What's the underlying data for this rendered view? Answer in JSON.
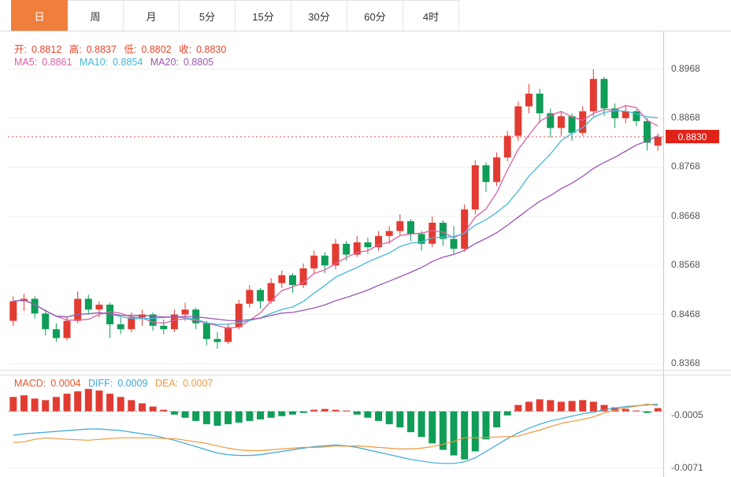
{
  "tabs": [
    {
      "label": "日",
      "active": true
    },
    {
      "label": "周",
      "active": false
    },
    {
      "label": "月",
      "active": false
    },
    {
      "label": "5分",
      "active": false
    },
    {
      "label": "15分",
      "active": false
    },
    {
      "label": "30分",
      "active": false
    },
    {
      "label": "60分",
      "active": false
    },
    {
      "label": "4时",
      "active": false
    }
  ],
  "legend": {
    "open_label": "开:",
    "open": "0.8812",
    "high_label": "高:",
    "high": "0.8837",
    "low_label": "低:",
    "low": "0.8802",
    "close_label": "收:",
    "close": "0.8830",
    "ma5_label": "MA5:",
    "ma5": "0.8861",
    "ma10_label": "MA10:",
    "ma10": "0.8854",
    "ma20_label": "MA20:",
    "ma20": "0.8805"
  },
  "macd_legend": {
    "macd_label": "MACD:",
    "macd": "0.0004",
    "diff_label": "DIFF:",
    "diff": "0.0009",
    "dea_label": "DEA:",
    "dea": "0.0007"
  },
  "colors": {
    "up": "#e23b32",
    "down": "#0f9d58",
    "ma5": "#e05fa0",
    "ma10": "#45b8d8",
    "ma20": "#9a57b0",
    "diff_line": "#3aa8d8",
    "dea_line": "#f0973c",
    "last_price_line": "#e05050",
    "zero_line": "#7ecfcf",
    "grid": "#efefef",
    "tab_active_bg": "#f07f3d",
    "price_tag_bg": "#e02318"
  },
  "chart_data": {
    "type": "candlestick",
    "title": "Daily candlestick chart with MA overlays and MACD panel",
    "main": {
      "ylim": [
        0.8355,
        0.9035
      ],
      "axis_ticks": [
        0.8968,
        0.8868,
        0.8768,
        0.8668,
        0.8568,
        0.8468,
        0.8368
      ],
      "last_price": 0.883,
      "ohlc_last": {
        "open": 0.8812,
        "high": 0.8837,
        "low": 0.8802,
        "close": 0.883
      },
      "overlays": [
        {
          "name": "MA5",
          "period": 5,
          "value": 0.8861
        },
        {
          "name": "MA10",
          "period": 10,
          "value": 0.8854
        },
        {
          "name": "MA20",
          "period": 20,
          "value": 0.8805
        }
      ],
      "candles": [
        [
          0.8455,
          0.8505,
          0.8445,
          0.8495
        ],
        [
          0.8495,
          0.851,
          0.8475,
          0.85
        ],
        [
          0.85,
          0.8505,
          0.846,
          0.847
        ],
        [
          0.847,
          0.8478,
          0.8425,
          0.8438
        ],
        [
          0.8438,
          0.845,
          0.8412,
          0.842
        ],
        [
          0.842,
          0.8462,
          0.8415,
          0.8455
        ],
        [
          0.8455,
          0.8515,
          0.845,
          0.85
        ],
        [
          0.85,
          0.8508,
          0.8468,
          0.8478
        ],
        [
          0.8478,
          0.8495,
          0.8462,
          0.8488
        ],
        [
          0.8488,
          0.8492,
          0.842,
          0.8448
        ],
        [
          0.8448,
          0.8462,
          0.8428,
          0.8438
        ],
        [
          0.8438,
          0.8472,
          0.8432,
          0.8462
        ],
        [
          0.8462,
          0.8478,
          0.8445,
          0.8468
        ],
        [
          0.8468,
          0.8472,
          0.8435,
          0.8445
        ],
        [
          0.8445,
          0.8458,
          0.8428,
          0.8438
        ],
        [
          0.8438,
          0.8478,
          0.8432,
          0.8468
        ],
        [
          0.8468,
          0.8492,
          0.8455,
          0.8478
        ],
        [
          0.8478,
          0.8482,
          0.8438,
          0.845
        ],
        [
          0.845,
          0.8455,
          0.8405,
          0.8418
        ],
        [
          0.8418,
          0.8432,
          0.8398,
          0.8412
        ],
        [
          0.8412,
          0.8448,
          0.8408,
          0.8442
        ],
        [
          0.8442,
          0.8498,
          0.8438,
          0.849
        ],
        [
          0.849,
          0.8528,
          0.8482,
          0.8518
        ],
        [
          0.8518,
          0.8522,
          0.848,
          0.8495
        ],
        [
          0.8495,
          0.8542,
          0.849,
          0.8532
        ],
        [
          0.8532,
          0.8558,
          0.8522,
          0.8548
        ],
        [
          0.8548,
          0.8552,
          0.8512,
          0.8528
        ],
        [
          0.8528,
          0.8572,
          0.8522,
          0.8562
        ],
        [
          0.8562,
          0.8598,
          0.8552,
          0.8588
        ],
        [
          0.8588,
          0.8595,
          0.8552,
          0.8568
        ],
        [
          0.8568,
          0.8622,
          0.856,
          0.8612
        ],
        [
          0.8612,
          0.8618,
          0.8578,
          0.859
        ],
        [
          0.859,
          0.8628,
          0.8585,
          0.8615
        ],
        [
          0.8615,
          0.8625,
          0.8592,
          0.8605
        ],
        [
          0.8605,
          0.8638,
          0.8598,
          0.8628
        ],
        [
          0.8628,
          0.8648,
          0.8612,
          0.8638
        ],
        [
          0.8638,
          0.8672,
          0.863,
          0.8658
        ],
        [
          0.8658,
          0.8662,
          0.8618,
          0.8632
        ],
        [
          0.8632,
          0.8638,
          0.8598,
          0.8612
        ],
        [
          0.8612,
          0.8668,
          0.8605,
          0.8655
        ],
        [
          0.8655,
          0.866,
          0.8608,
          0.8622
        ],
        [
          0.8622,
          0.8648,
          0.8592,
          0.8602
        ],
        [
          0.8602,
          0.8692,
          0.8596,
          0.8682
        ],
        [
          0.8682,
          0.8782,
          0.8672,
          0.8772
        ],
        [
          0.8772,
          0.8778,
          0.8718,
          0.8738
        ],
        [
          0.8738,
          0.8798,
          0.873,
          0.8788
        ],
        [
          0.8788,
          0.8842,
          0.878,
          0.8832
        ],
        [
          0.8832,
          0.8902,
          0.8822,
          0.8892
        ],
        [
          0.8892,
          0.8938,
          0.8878,
          0.8918
        ],
        [
          0.8918,
          0.8928,
          0.8858,
          0.8878
        ],
        [
          0.8878,
          0.8888,
          0.8828,
          0.8848
        ],
        [
          0.8848,
          0.8882,
          0.8832,
          0.8872
        ],
        [
          0.8872,
          0.8878,
          0.8822,
          0.8838
        ],
        [
          0.8838,
          0.8892,
          0.8832,
          0.8882
        ],
        [
          0.8882,
          0.8968,
          0.8872,
          0.8948
        ],
        [
          0.8948,
          0.8952,
          0.8872,
          0.8888
        ],
        [
          0.8888,
          0.8898,
          0.8848,
          0.8868
        ],
        [
          0.8868,
          0.8895,
          0.8858,
          0.8882
        ],
        [
          0.8882,
          0.8886,
          0.8852,
          0.8862
        ],
        [
          0.8862,
          0.8868,
          0.8802,
          0.8818
        ],
        [
          0.8812,
          0.8837,
          0.8802,
          0.883
        ]
      ]
    },
    "macd": {
      "ylim": [
        -0.0078,
        0.0034
      ],
      "axis_ticks": [
        -0.0005,
        -0.0071
      ],
      "last_values": {
        "macd": 0.0004,
        "diff": 0.0009,
        "dea": 0.0007
      },
      "hist": [
        0.0018,
        0.002,
        0.0016,
        0.0014,
        0.0018,
        0.0022,
        0.0025,
        0.0028,
        0.0026,
        0.0022,
        0.0018,
        0.0014,
        0.001,
        0.0006,
        0.0002,
        -0.0004,
        -0.0008,
        -0.0012,
        -0.0016,
        -0.0018,
        -0.0016,
        -0.0014,
        -0.0012,
        -0.001,
        -0.0008,
        -0.0006,
        -0.0004,
        -0.0002,
        0.0002,
        0.0003,
        0.0002,
        0.0001,
        -0.0004,
        -0.0008,
        -0.0012,
        -0.0016,
        -0.002,
        -0.0026,
        -0.0032,
        -0.004,
        -0.0048,
        -0.0055,
        -0.006,
        -0.005,
        -0.0035,
        -0.002,
        -0.0005,
        0.0008,
        0.0012,
        0.0015,
        0.0014,
        0.0012,
        0.0013,
        0.0014,
        0.0012,
        0.0008,
        0.0005,
        0.0003,
        0.0001,
        -0.0002,
        0.0004
      ],
      "diff": [
        -0.003,
        -0.0028,
        -0.0027,
        -0.0026,
        -0.0025,
        -0.0024,
        -0.0023,
        -0.0022,
        -0.0022,
        -0.0023,
        -0.0024,
        -0.0026,
        -0.0028,
        -0.003,
        -0.0033,
        -0.0036,
        -0.004,
        -0.0044,
        -0.0048,
        -0.0052,
        -0.0054,
        -0.0055,
        -0.0055,
        -0.0054,
        -0.0052,
        -0.005,
        -0.0048,
        -0.0046,
        -0.0044,
        -0.0043,
        -0.0042,
        -0.0043,
        -0.0045,
        -0.0048,
        -0.0051,
        -0.0054,
        -0.0057,
        -0.006,
        -0.0062,
        -0.0064,
        -0.0065,
        -0.0065,
        -0.0063,
        -0.0058,
        -0.005,
        -0.0042,
        -0.0034,
        -0.0027,
        -0.0021,
        -0.0016,
        -0.0012,
        -0.0009,
        -0.0006,
        -0.0003,
        -0.0001,
        0.0002,
        0.0004,
        0.0006,
        0.0007,
        0.0008,
        0.0009
      ],
      "dea_rule": "dea[i] = diff[i] - hist[i]/2"
    }
  }
}
